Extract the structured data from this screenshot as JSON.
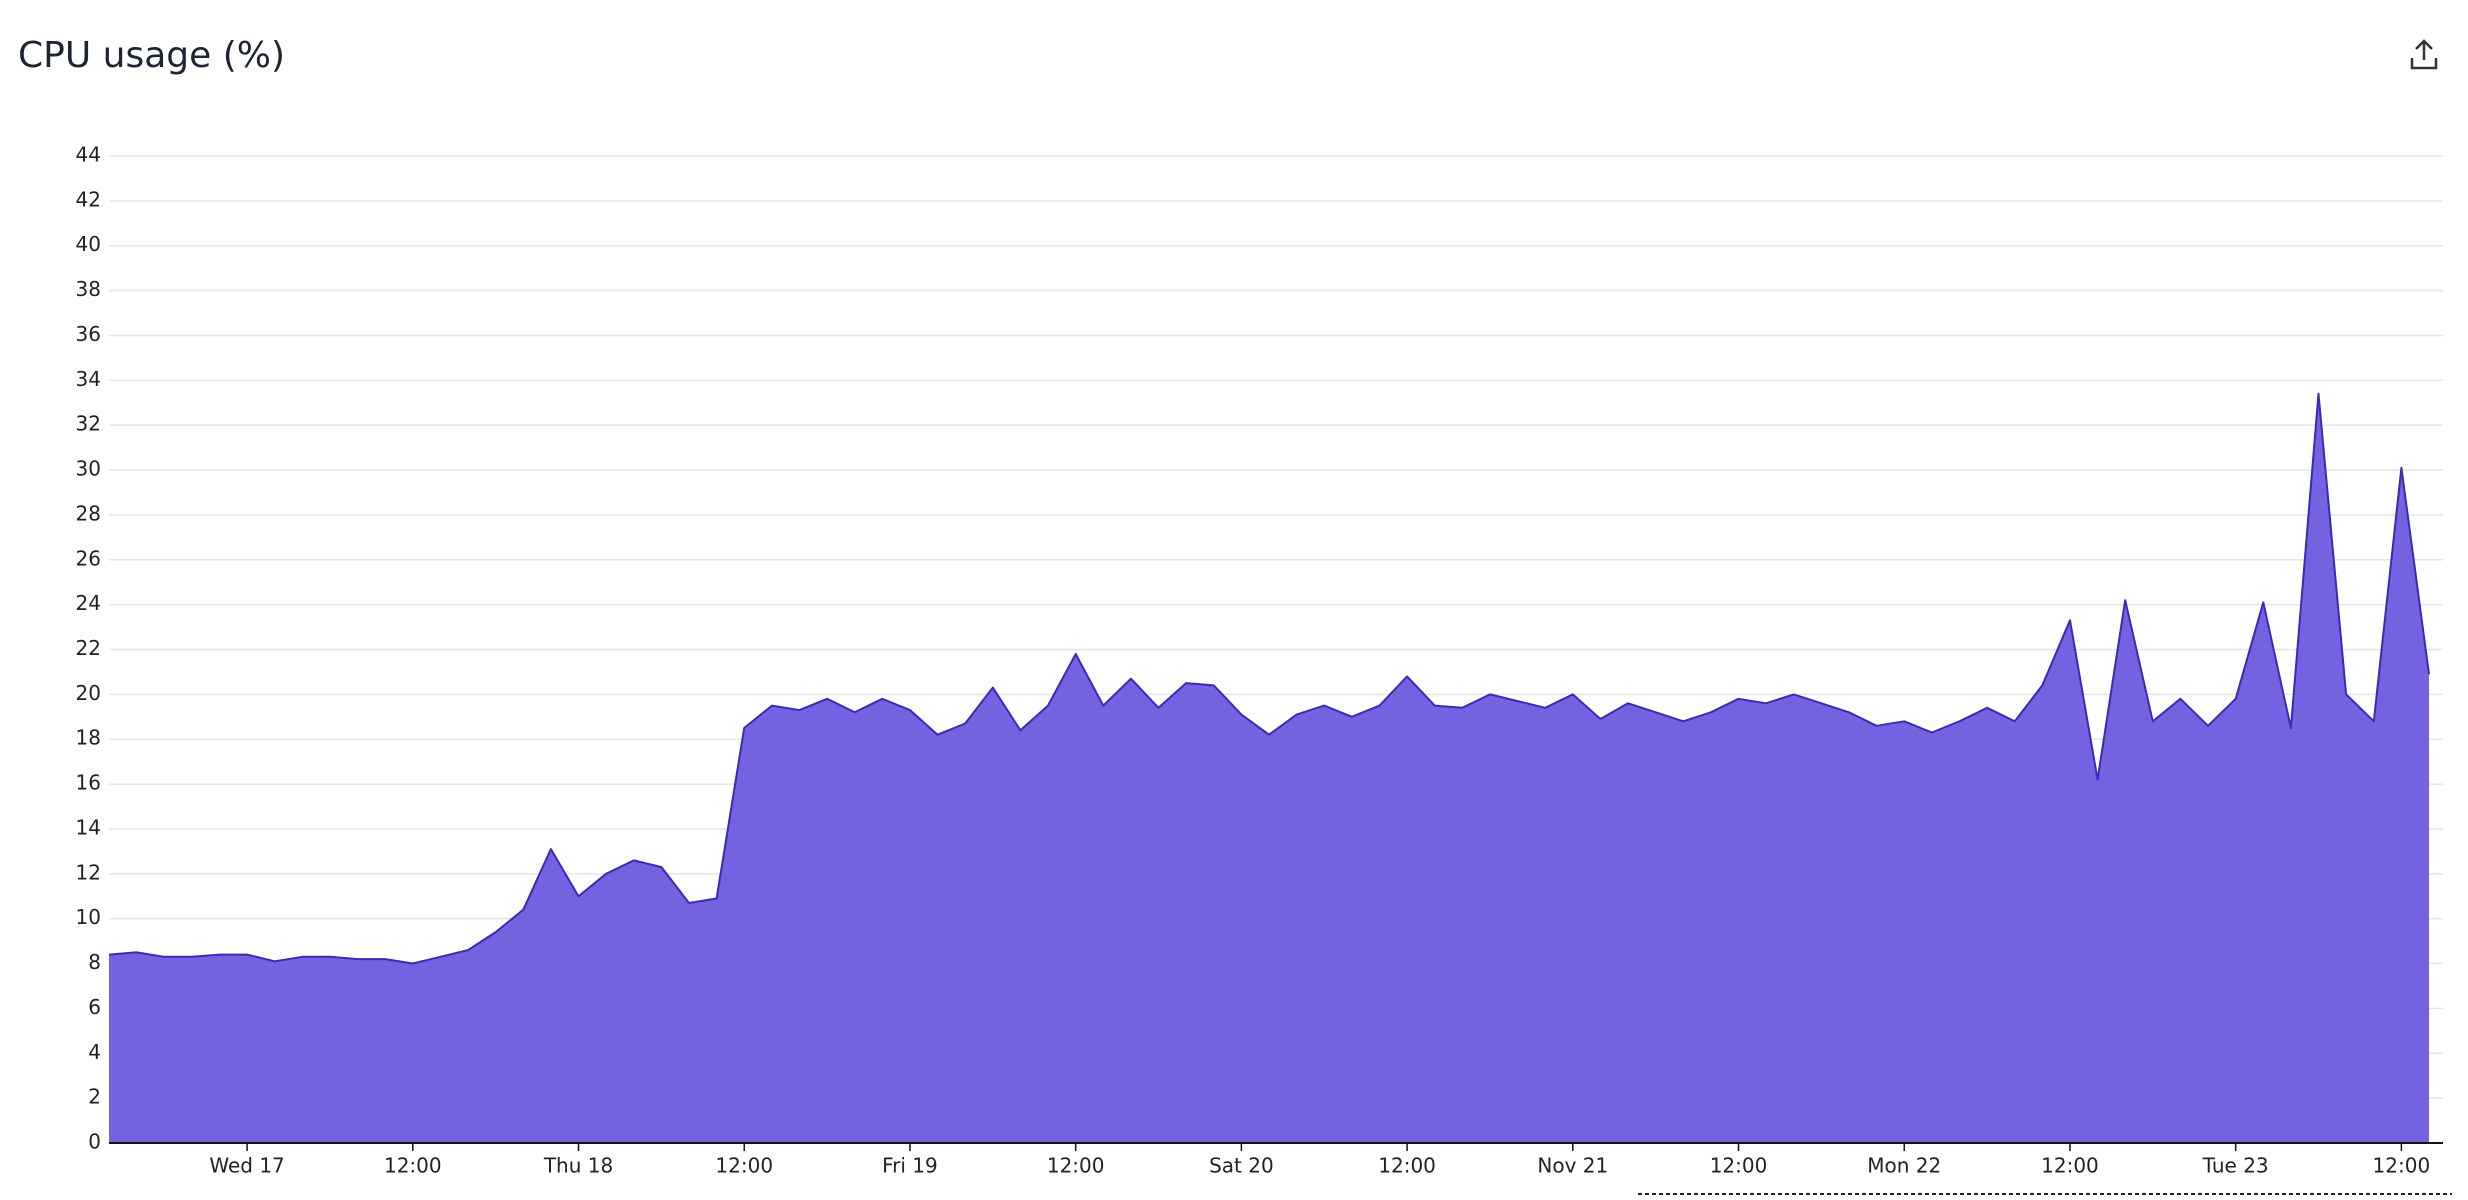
{
  "chart_data": {
    "type": "area",
    "title": "CPU usage (%)",
    "categories": [
      null,
      null,
      null,
      null,
      null,
      "Wed 17",
      null,
      null,
      null,
      null,
      null,
      "12:00",
      null,
      null,
      null,
      null,
      null,
      "Thu 18",
      null,
      null,
      null,
      null,
      null,
      "12:00",
      null,
      null,
      null,
      null,
      null,
      "Fri 19",
      null,
      null,
      null,
      null,
      null,
      "12:00",
      null,
      null,
      null,
      null,
      null,
      "Sat 20",
      null,
      null,
      null,
      null,
      null,
      "12:00",
      null,
      null,
      null,
      null,
      null,
      "Nov 21",
      null,
      null,
      null,
      null,
      null,
      "12:00",
      null,
      null,
      null,
      null,
      null,
      "Mon 22",
      null,
      null,
      null,
      null,
      null,
      "12:00",
      null,
      null,
      null,
      null,
      null,
      "Tue 23",
      null,
      null,
      null,
      null,
      null,
      "12:00",
      null
    ],
    "series": [
      {
        "color": "#7463e0",
        "line_color": "#3b2ab5",
        "values": [
          8.4,
          8.5,
          8.3,
          8.3,
          8.4,
          8.4,
          8.1,
          8.3,
          8.3,
          8.2,
          8.2,
          8.0,
          8.3,
          8.6,
          9.4,
          10.4,
          13.1,
          11.0,
          12.0,
          12.6,
          12.3,
          10.7,
          10.9,
          18.5,
          19.5,
          19.3,
          19.8,
          19.2,
          19.8,
          19.3,
          18.2,
          18.7,
          20.3,
          18.4,
          19.5,
          21.8,
          19.5,
          20.7,
          19.4,
          20.5,
          20.4,
          19.1,
          18.2,
          19.1,
          19.5,
          19.0,
          19.5,
          20.8,
          19.5,
          19.4,
          20.0,
          19.7,
          19.4,
          20.0,
          18.9,
          19.6,
          19.2,
          18.8,
          19.2,
          19.8,
          19.6,
          20.0,
          19.6,
          19.2,
          18.6,
          18.8,
          18.3,
          18.8,
          19.4,
          18.8,
          20.4,
          23.3,
          16.2,
          24.2,
          18.8,
          19.8,
          18.6,
          19.8,
          24.1,
          18.5,
          33.4,
          20.0,
          18.8,
          30.1,
          20.9
        ]
      }
    ],
    "ylim": [
      0,
      44
    ],
    "yticks": [
      0,
      2,
      4,
      6,
      8,
      10,
      12,
      14,
      16,
      18,
      20,
      22,
      24,
      26,
      28,
      30,
      32,
      34,
      36,
      38,
      40,
      42,
      44
    ],
    "grid": true
  }
}
